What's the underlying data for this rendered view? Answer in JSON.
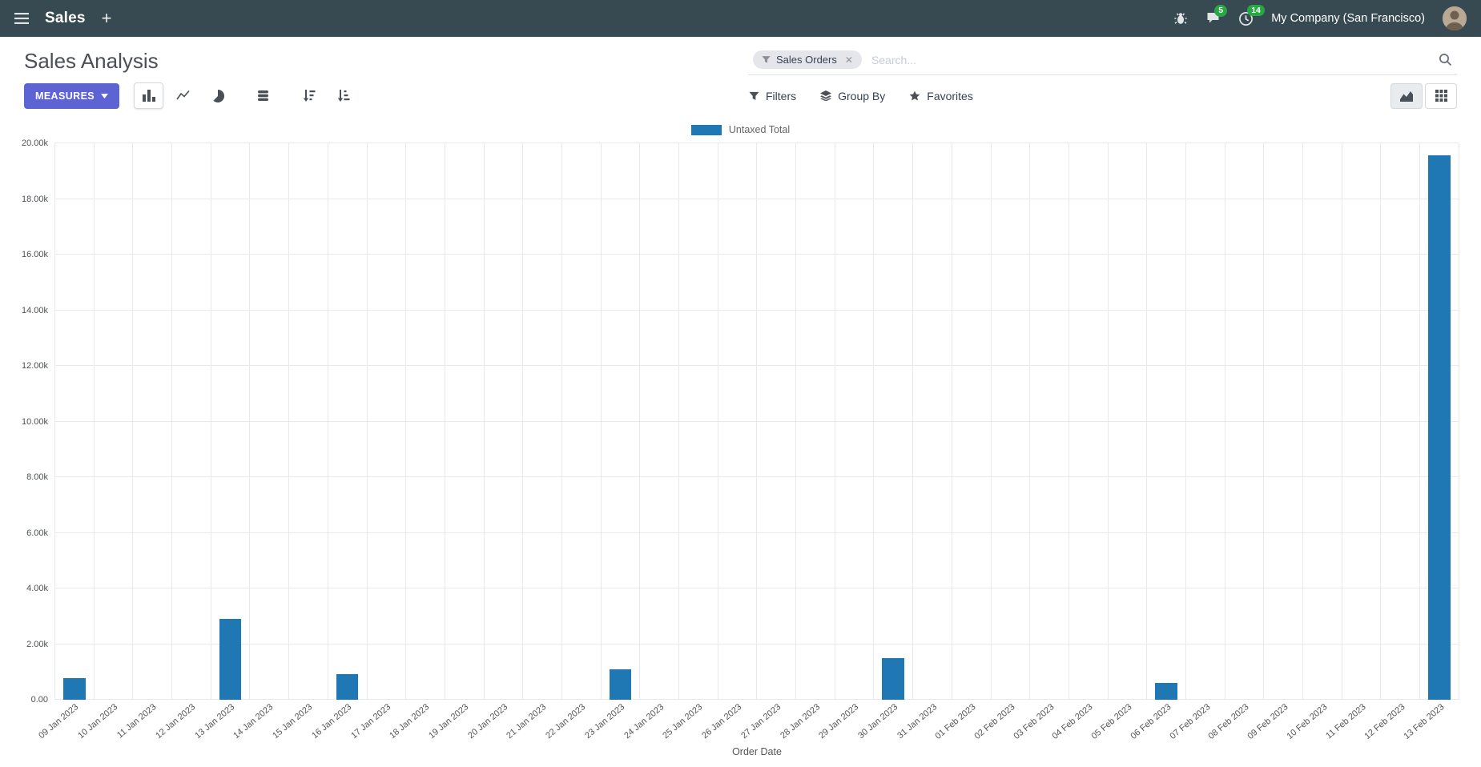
{
  "navbar": {
    "app_name": "Sales",
    "company_name": "My Company (San Francisco)",
    "messages_badge": "5",
    "activities_badge": "14"
  },
  "control_panel": {
    "title": "Sales Analysis",
    "measures_button": "MEASURES",
    "filters_label": "Filters",
    "group_by_label": "Group By",
    "favorites_label": "Favorites",
    "search": {
      "facet_label": "Sales Orders",
      "facet_remove": "✕",
      "placeholder": "Search..."
    },
    "chart_type_icons": [
      "bar-chart",
      "line-chart",
      "pie-chart",
      "stacked",
      "sort-descending",
      "sort-ascending"
    ],
    "view_switcher_icons": [
      "graph-view",
      "pivot-view"
    ]
  },
  "chart_data": {
    "type": "bar",
    "title": "",
    "xlabel": "Order Date",
    "ylabel": "",
    "ylim": [
      0,
      20000
    ],
    "y_ticks": [
      "0.00",
      "2.00k",
      "4.00k",
      "6.00k",
      "8.00k",
      "10.00k",
      "12.00k",
      "14.00k",
      "16.00k",
      "18.00k",
      "20.00k"
    ],
    "grid": true,
    "legend_position": "top",
    "categories": [
      "09 Jan 2023",
      "10 Jan 2023",
      "11 Jan 2023",
      "12 Jan 2023",
      "13 Jan 2023",
      "14 Jan 2023",
      "15 Jan 2023",
      "16 Jan 2023",
      "17 Jan 2023",
      "18 Jan 2023",
      "19 Jan 2023",
      "20 Jan 2023",
      "21 Jan 2023",
      "22 Jan 2023",
      "23 Jan 2023",
      "24 Jan 2023",
      "25 Jan 2023",
      "26 Jan 2023",
      "27 Jan 2023",
      "28 Jan 2023",
      "29 Jan 2023",
      "30 Jan 2023",
      "31 Jan 2023",
      "01 Feb 2023",
      "02 Feb 2023",
      "03 Feb 2023",
      "04 Feb 2023",
      "05 Feb 2023",
      "06 Feb 2023",
      "07 Feb 2023",
      "08 Feb 2023",
      "09 Feb 2023",
      "10 Feb 2023",
      "11 Feb 2023",
      "12 Feb 2023",
      "13 Feb 2023"
    ],
    "series": [
      {
        "name": "Untaxed Total",
        "color": "#1f77b4",
        "values": [
          780,
          0,
          0,
          0,
          2910,
          0,
          0,
          910,
          0,
          0,
          0,
          0,
          0,
          0,
          1080,
          0,
          0,
          0,
          0,
          0,
          0,
          1490,
          0,
          0,
          0,
          0,
          0,
          0,
          610,
          0,
          0,
          0,
          0,
          0,
          0,
          19560
        ]
      }
    ]
  },
  "colors": {
    "navbar_bg": "#374a52",
    "primary_button": "#5d63d3",
    "bar": "#1f77b4",
    "badge": "#28a745"
  }
}
